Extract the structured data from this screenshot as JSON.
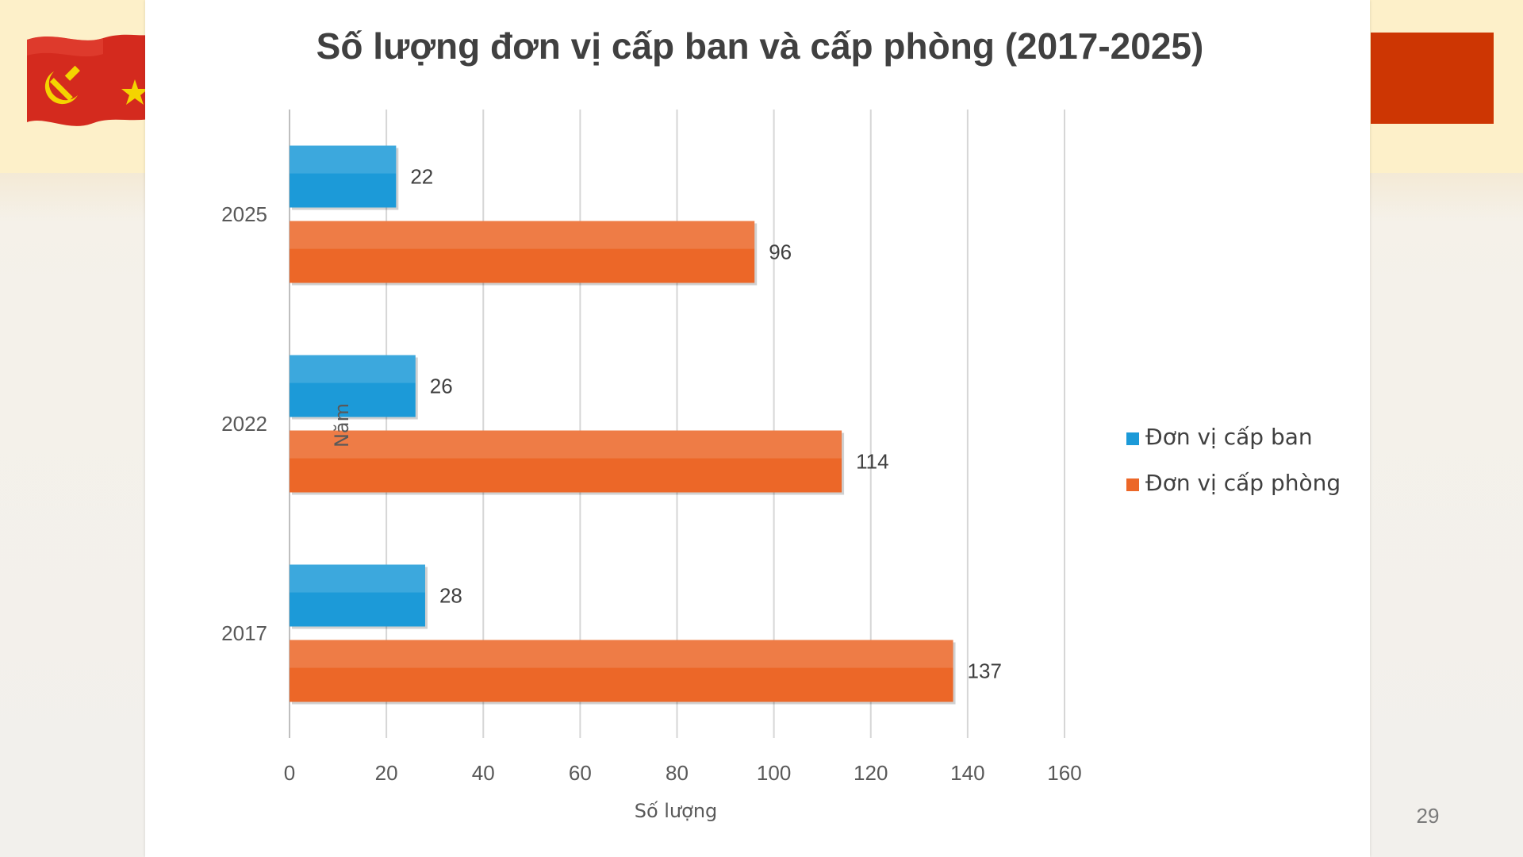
{
  "slide": {
    "page_number": "29"
  },
  "colors": {
    "series_ban": "#1c9ad8",
    "series_phong": "#ec6728",
    "grid": "#d6d6d6",
    "text": "#595959",
    "title": "#404040",
    "accent_red": "#cd3603",
    "flag_star": "#f4d400"
  },
  "chart_data": {
    "type": "bar",
    "orientation": "horizontal",
    "title": "Số lượng đơn vị cấp ban và cấp phòng (2017-2025)",
    "xlabel": "Số lượng",
    "ylabel": "Năm",
    "categories": [
      "2025",
      "2022",
      "2017"
    ],
    "series": [
      {
        "name": "Đơn vị cấp ban",
        "values": [
          22,
          26,
          28
        ],
        "color": "#1c9ad8"
      },
      {
        "name": "Đơn vị cấp phòng",
        "values": [
          96,
          114,
          137
        ],
        "color": "#ec6728"
      }
    ],
    "xlim": [
      0,
      160
    ],
    "xticks": [
      0,
      20,
      40,
      60,
      80,
      100,
      120,
      140,
      160
    ],
    "grid": true,
    "legend_position": "right",
    "data_labels": true
  }
}
